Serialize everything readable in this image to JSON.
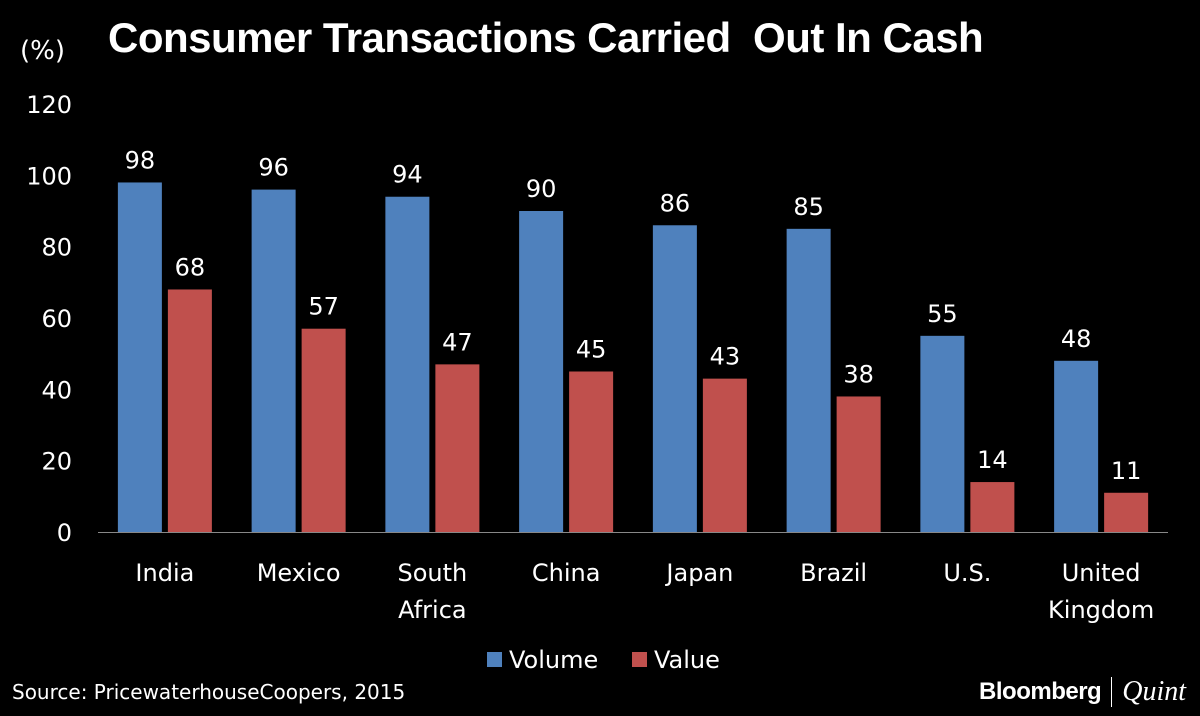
{
  "chart_data": {
    "type": "bar",
    "title": "Consumer Transactions Carried  Out In Cash",
    "ylabel": "(%)",
    "xlabel": "",
    "ylim": [
      0,
      120
    ],
    "yticks": [
      0,
      20,
      40,
      60,
      80,
      100,
      120
    ],
    "grid": false,
    "legend_position": "bottom",
    "categories": [
      [
        "India"
      ],
      [
        "Mexico"
      ],
      [
        "South",
        "Africa"
      ],
      [
        "China"
      ],
      [
        "Japan"
      ],
      [
        "Brazil"
      ],
      [
        "U.S."
      ],
      [
        "United",
        "Kingdom"
      ]
    ],
    "series": [
      {
        "name": "Volume",
        "color": "#4F81BD",
        "values": [
          98,
          96,
          94,
          90,
          86,
          85,
          55,
          48
        ]
      },
      {
        "name": "Value",
        "color": "#C0504D",
        "values": [
          68,
          57,
          47,
          45,
          43,
          38,
          14,
          11
        ]
      }
    ]
  },
  "source": "Source: PricewaterhouseCoopers, 2015",
  "logo": {
    "left": "Bloomberg",
    "right": "Quint"
  }
}
